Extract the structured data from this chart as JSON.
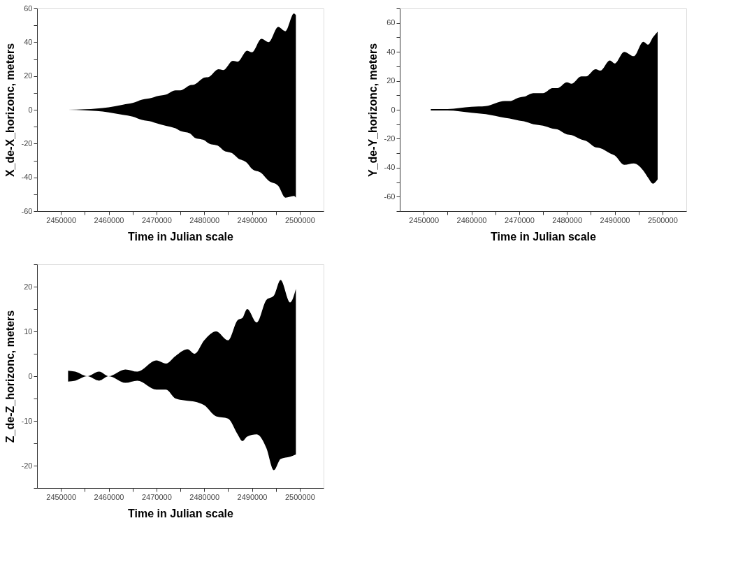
{
  "chart_data": [
    {
      "type": "area",
      "xlabel": "Time in Julian scale",
      "ylabel": "X_de-X_horizonc, meters",
      "xlim": [
        2445000,
        2505000
      ],
      "ylim": [
        -60,
        60
      ],
      "xticks": [
        2450000,
        {
          "value": 2455000,
          "label": null
        },
        2460000,
        {
          "value": 2465000,
          "label": null
        },
        2470000,
        {
          "value": 2475000,
          "label": null
        },
        2480000,
        {
          "value": 2485000,
          "label": null
        },
        2490000,
        {
          "value": 2495000,
          "label": null
        },
        2500000
      ],
      "grid": false,
      "legend": false,
      "yticks": [
        -60,
        {
          "value": -50,
          "label": null
        },
        -40,
        {
          "value": -30,
          "label": null
        },
        -20,
        {
          "value": -10,
          "label": null
        },
        0,
        {
          "value": 10,
          "label": null
        },
        20,
        {
          "value": 30,
          "label": null
        },
        40,
        {
          "value": 50,
          "label": null
        },
        60
      ],
      "series": [
        {
          "color": "#000000",
          "x": [
            2451500,
            2455000,
            2460000,
            2463000,
            2465000,
            2467000,
            2469000,
            2470000,
            2472000,
            2474000,
            2475000,
            2477000,
            2478000,
            2480000,
            2481000,
            2483000,
            2484000,
            2486000,
            2487000,
            2489000,
            2490000,
            2492000,
            2493500,
            2495500,
            2497000,
            2498800,
            2499200
          ],
          "values": [
            0,
            0.3,
            1.5,
            3,
            4,
            6,
            7,
            8,
            9,
            11.5,
            11.5,
            14.5,
            15,
            19,
            19.5,
            24,
            23.5,
            29,
            28.5,
            35,
            34,
            42,
            40,
            49,
            46.5,
            57,
            56
          ]
        },
        {
          "color": "#000000",
          "x": [
            2451500,
            2455000,
            2460000,
            2463000,
            2465000,
            2467000,
            2469000,
            2470000,
            2472000,
            2474000,
            2475000,
            2477000,
            2478000,
            2480000,
            2481000,
            2483000,
            2484000,
            2486000,
            2487000,
            2489000,
            2490000,
            2492000,
            2493500,
            2495500,
            2497000,
            2498800,
            2499200
          ],
          "values": [
            0,
            -0.3,
            -1.5,
            -3,
            -4,
            -6,
            -7,
            -8,
            -9.5,
            -11,
            -12.5,
            -14,
            -16.5,
            -18,
            -20,
            -21.5,
            -24,
            -26,
            -28.5,
            -31.5,
            -35,
            -37.5,
            -42,
            -45,
            -52,
            -51,
            -52
          ]
        }
      ]
    },
    {
      "type": "area",
      "xlabel": "Time in Julian scale",
      "ylabel": "Y_de-Y_horizonc, meters",
      "xlim": [
        2445000,
        2505000
      ],
      "ylim": [
        -70,
        70
      ],
      "xticks": [
        2450000,
        {
          "value": 2455000,
          "label": null
        },
        2460000,
        {
          "value": 2465000,
          "label": null
        },
        2470000,
        {
          "value": 2475000,
          "label": null
        },
        2480000,
        {
          "value": 2485000,
          "label": null
        },
        2490000,
        {
          "value": 2495000,
          "label": null
        },
        2500000
      ],
      "grid": false,
      "legend": false,
      "yticks": [
        {
          "value": -70,
          "label": null
        },
        -60,
        {
          "value": -50,
          "label": null
        },
        -40,
        {
          "value": -30,
          "label": null
        },
        -20,
        {
          "value": -10,
          "label": null
        },
        0,
        {
          "value": 10,
          "label": null
        },
        20,
        {
          "value": 30,
          "label": null
        },
        40,
        {
          "value": 50,
          "label": null
        },
        60,
        {
          "value": 70,
          "label": null
        }
      ],
      "series": [
        {
          "color": "#000000",
          "x": [
            2451500,
            2455000,
            2460000,
            2463000,
            2467000,
            2468000,
            2470000,
            2471000,
            2473000,
            2475000,
            2477000,
            2478000,
            2480000,
            2481000,
            2483000,
            2484000,
            2486000,
            2487000,
            2489000,
            2490000,
            2492000,
            2494000,
            2496000,
            2497000,
            2498000,
            2499000
          ],
          "values": [
            0.5,
            0.5,
            2,
            2.5,
            6,
            6,
            8.5,
            9,
            11.5,
            11.5,
            15,
            15,
            19,
            18,
            23,
            23,
            28,
            27,
            34,
            32,
            40,
            37,
            47,
            45,
            50,
            54
          ]
        },
        {
          "color": "#000000",
          "x": [
            2451500,
            2455000,
            2460000,
            2463000,
            2467000,
            2468000,
            2470000,
            2471000,
            2473000,
            2475000,
            2477000,
            2478000,
            2480000,
            2481000,
            2483000,
            2484000,
            2486000,
            2487000,
            2489000,
            2490000,
            2492000,
            2494000,
            2496000,
            2497000,
            2498000,
            2499000
          ],
          "values": [
            -0.5,
            -0.5,
            -2,
            -3,
            -5.5,
            -6,
            -7.5,
            -8,
            -10,
            -11,
            -13,
            -13.5,
            -17,
            -17.5,
            -20.5,
            -21.5,
            -26,
            -26.5,
            -30,
            -31.5,
            -38,
            -37,
            -42,
            -47,
            -51,
            -48
          ]
        }
      ]
    },
    {
      "type": "area",
      "xlabel": "Time in Julian scale",
      "ylabel": "Z_de-Z_horizonc, meters",
      "xlim": [
        2445000,
        2505000
      ],
      "ylim": [
        -25,
        25
      ],
      "xticks": [
        2450000,
        {
          "value": 2455000,
          "label": null
        },
        2460000,
        {
          "value": 2465000,
          "label": null
        },
        2470000,
        {
          "value": 2475000,
          "label": null
        },
        2480000,
        {
          "value": 2485000,
          "label": null
        },
        2490000,
        {
          "value": 2495000,
          "label": null
        },
        2500000
      ],
      "grid": false,
      "legend": false,
      "yticks": [
        {
          "value": -25,
          "label": null
        },
        -20,
        {
          "value": -15,
          "label": null
        },
        -10,
        {
          "value": -5,
          "label": null
        },
        0,
        {
          "value": 5,
          "label": null
        },
        10,
        {
          "value": 15,
          "label": null
        },
        20,
        {
          "value": 25,
          "label": null
        }
      ],
      "series": [
        {
          "color": "#000000",
          "x": [
            2451500,
            2453000,
            2455500,
            2458000,
            2460000,
            2463500,
            2466000,
            2470000,
            2472000,
            2474000,
            2476500,
            2478000,
            2480000,
            2482500,
            2485000,
            2487000,
            2488000,
            2489000,
            2491000,
            2493000,
            2494600,
            2496000,
            2498000,
            2499200
          ],
          "values": [
            1.2,
            1,
            0,
            1,
            0,
            1.5,
            1,
            3.5,
            2.8,
            4.5,
            6,
            5,
            8,
            10,
            8,
            12.5,
            13,
            15,
            12,
            17,
            18,
            21.5,
            16.5,
            19.5
          ]
        },
        {
          "color": "#000000",
          "x": [
            2451500,
            2453000,
            2455500,
            2458000,
            2460000,
            2463500,
            2466000,
            2470000,
            2472000,
            2474000,
            2476500,
            2478000,
            2480000,
            2482500,
            2485000,
            2487000,
            2488000,
            2489000,
            2491000,
            2493000,
            2494600,
            2496000,
            2498000,
            2499200
          ],
          "values": [
            -1.2,
            -1,
            0,
            -1,
            0,
            -1.5,
            -1,
            -3,
            -3,
            -5,
            -5.5,
            -5.7,
            -6.5,
            -9,
            -9.5,
            -13,
            -14.5,
            -13.5,
            -13,
            -16,
            -21,
            -18.5,
            -18,
            -17.5
          ]
        }
      ]
    }
  ]
}
